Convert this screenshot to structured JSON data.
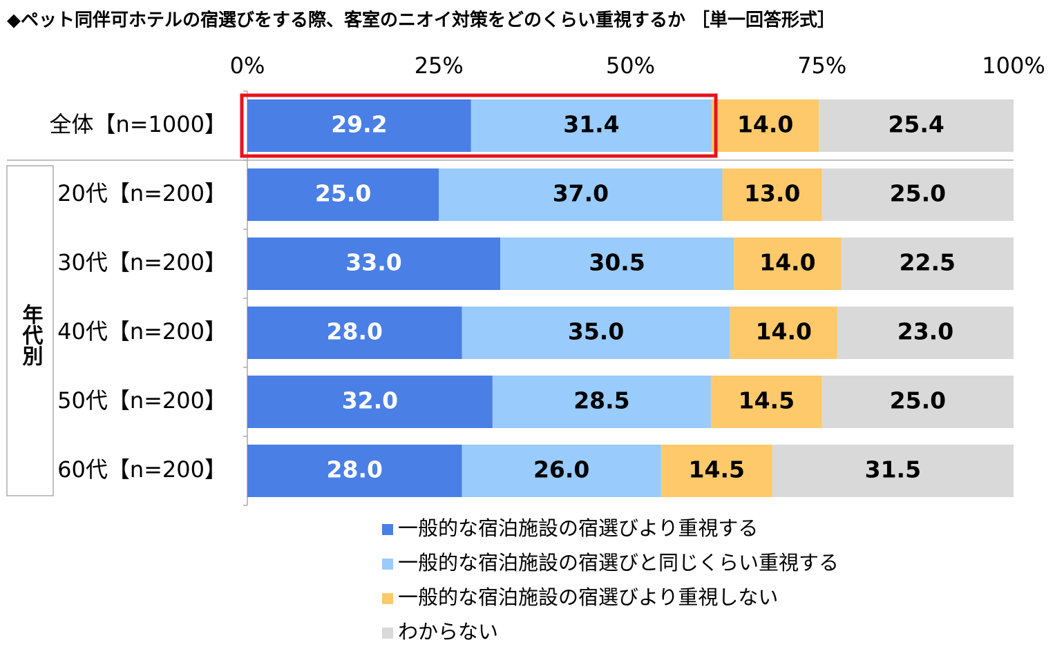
{
  "chart_data": {
    "type": "stacked_bar_horizontal",
    "title": "◆ペット同伴可ホテルの宿選びをする際、客室のニオイ対策をどのくらい重視するか ［単一回答形式］",
    "group_label": "年代別",
    "categories": [
      "全体【n=1000】",
      "20代【n=200】",
      "30代【n=200】",
      "40代【n=200】",
      "50代【n=200】",
      "60代【n=200】"
    ],
    "series": [
      {
        "name": "一般的な宿泊施設の宿選びより重視する",
        "color": "#4a7fe6",
        "values": [
          29.2,
          25,
          33,
          28,
          32,
          28
        ],
        "value_labels": [
          "29.2",
          "25.0",
          "33.0",
          "28.0",
          "32.0",
          "28.0"
        ]
      },
      {
        "name": "一般的な宿泊施設の宿選びと同じくらい重視する",
        "color": "#99cbfc",
        "values": [
          31.4,
          37,
          30.5,
          35,
          28.5,
          26
        ],
        "value_labels": [
          "31.4",
          "37.0",
          "30.5",
          "35.0",
          "28.5",
          "26.0"
        ]
      },
      {
        "name": "一般的な宿泊施設の宿選びより重視しない",
        "color": "#fec96a",
        "values": [
          14,
          13,
          14,
          14,
          14.5,
          14.5
        ],
        "value_labels": [
          "14.0",
          "13.0",
          "14.0",
          "14.0",
          "14.5",
          "14.5"
        ]
      },
      {
        "name": "わからない",
        "color": "#d9d9d9",
        "values": [
          25.4,
          25,
          22.5,
          23,
          25,
          31.5
        ],
        "value_labels": [
          "25.4",
          "25.0",
          "22.5",
          "23.0",
          "25.0",
          "31.5"
        ]
      }
    ],
    "xlim": [
      0,
      100
    ],
    "xticks": [
      {
        "value": 0,
        "label": "0%"
      },
      {
        "value": 25,
        "label": "25%"
      },
      {
        "value": 50,
        "label": "50%"
      },
      {
        "value": 75,
        "label": "75%"
      },
      {
        "value": 100,
        "label": "100%"
      }
    ]
  }
}
